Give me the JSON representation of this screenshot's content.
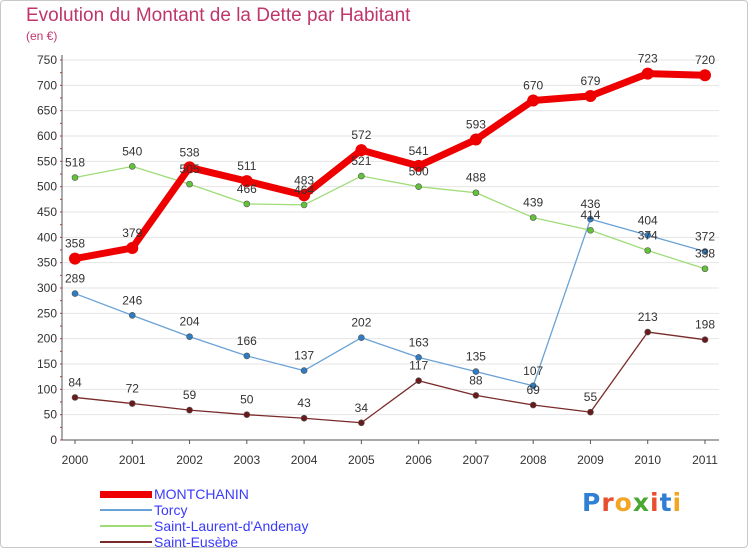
{
  "title": "Evolution du Montant de la Dette par Habitant",
  "unit": "(en €)",
  "logo": {
    "text": "Proxiti",
    "letter_colors": [
      "#2f7fd4",
      "#e84f2e",
      "#f2a623",
      "#4aa832",
      "#e84f2e",
      "#2f7fd4",
      "#f2a623"
    ]
  },
  "chart_data": {
    "type": "line",
    "title": "Evolution du Montant de la Dette par Habitant",
    "ylabel": "(en €)",
    "xlabel": "",
    "ylim": [
      0,
      750
    ],
    "y_ticks": [
      0,
      50,
      100,
      150,
      200,
      250,
      300,
      350,
      400,
      450,
      500,
      550,
      600,
      650,
      700,
      750
    ],
    "grid": true,
    "legend_position": "bottom-left",
    "x": [
      "2000",
      "2001",
      "2002",
      "2003",
      "2004",
      "2005",
      "2006",
      "2007",
      "2008",
      "2009",
      "2010",
      "2011"
    ],
    "series": [
      {
        "name": "MONTCHANIN",
        "values": [
          358,
          379,
          538,
          511,
          483,
          572,
          541,
          593,
          670,
          679,
          723,
          720
        ],
        "color": "#ee0000",
        "marker": "#ee0000",
        "width": 7
      },
      {
        "name": "Torcy",
        "values": [
          289,
          246,
          204,
          166,
          137,
          202,
          163,
          135,
          107,
          436,
          404,
          372
        ],
        "color": "#6aa2d6",
        "marker": "#2e7cc4",
        "width": 1.3
      },
      {
        "name": "Saint-Laurent-d'Andenay",
        "values": [
          518,
          540,
          505,
          466,
          464,
          521,
          500,
          488,
          439,
          414,
          374,
          338
        ],
        "color": "#9fdc78",
        "marker": "#62c23a",
        "width": 1.3
      },
      {
        "name": "Saint-Eusèbe",
        "values": [
          84,
          72,
          59,
          50,
          43,
          34,
          117,
          88,
          69,
          55,
          213,
          198
        ],
        "color": "#7a2a2a",
        "marker": "#6a1a1a",
        "width": 1.3
      }
    ]
  }
}
